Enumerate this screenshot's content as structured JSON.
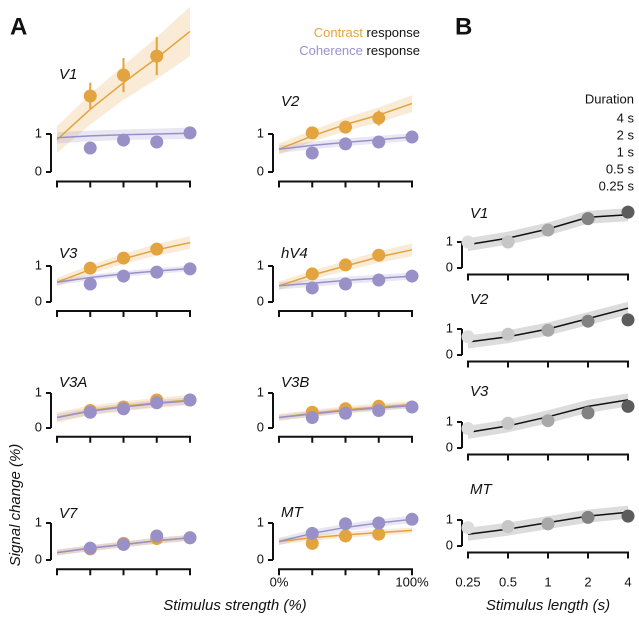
{
  "figure": {
    "panel_a": "A",
    "panel_b": "B",
    "ylabel": "Signal change (%)",
    "xlabel_a": "Stimulus strength (%)",
    "xlabel_b": "Stimulus length (s)",
    "legend_a": [
      {
        "name": "Contrast",
        "color": "#e3a33e",
        "suffix": "response"
      },
      {
        "name": "Coherence",
        "color": "#9a90c8",
        "suffix": "response"
      }
    ],
    "legend_b": {
      "title": "Duration",
      "items": [
        {
          "name": "4 s",
          "color": "#5c5c5c"
        },
        {
          "name": "2 s",
          "color": "#828282"
        },
        {
          "name": "1 s",
          "color": "#a8a8a8"
        },
        {
          "name": "0.5 s",
          "color": "#c6c6c6"
        },
        {
          "name": "0.25 s",
          "color": "#dddddd"
        }
      ]
    }
  },
  "chart_data": [
    {
      "type": "line",
      "title": "V1",
      "x": [
        0,
        25,
        50,
        75,
        100
      ],
      "xlim": [
        0,
        100
      ],
      "xticks": [
        0,
        25,
        50,
        75,
        100
      ],
      "ylim": [
        -0.25,
        3.75
      ],
      "yticks": [
        0,
        1
      ],
      "series": [
        {
          "color": "#e3a33e",
          "values": [
            null,
            2.0,
            2.55,
            3.05,
            null
          ],
          "errors": [
            null,
            0.35,
            0.45,
            0.5,
            null
          ],
          "fit": [
            0.85,
            1.65,
            2.35,
            3.0,
            3.7
          ],
          "fit_error": [
            0.35,
            0.4,
            0.45,
            0.55,
            0.65
          ]
        },
        {
          "color": "#9a90c8",
          "values": [
            null,
            0.63,
            0.84,
            0.79,
            1.03
          ],
          "errors": [
            null,
            0.08,
            0.1,
            0.15,
            0.08
          ],
          "fit": [
            0.9,
            0.95,
            0.98,
            1.0,
            1.02
          ],
          "fit_error": [
            0.15,
            0.14,
            0.14,
            0.14,
            0.15
          ]
        }
      ]
    },
    {
      "type": "line",
      "title": "V2",
      "x": [
        0,
        25,
        50,
        75,
        100
      ],
      "xlim": [
        0,
        100
      ],
      "xticks": [
        0,
        25,
        50,
        75,
        100
      ],
      "ylim": [
        -0.25,
        3.75
      ],
      "yticks": [
        0,
        1
      ],
      "series": [
        {
          "color": "#e3a33e",
          "values": [
            null,
            1.03,
            1.18,
            1.42,
            null
          ],
          "errors": [
            null,
            0.08,
            0.1,
            0.2,
            null
          ],
          "fit": [
            0.6,
            0.95,
            1.25,
            1.5,
            1.8
          ],
          "fit_error": [
            0.15,
            0.15,
            0.17,
            0.2,
            0.22
          ]
        },
        {
          "color": "#9a90c8",
          "values": [
            null,
            0.5,
            0.74,
            0.79,
            0.92
          ],
          "errors": [
            null,
            0.08,
            0.08,
            0.08,
            0.08
          ],
          "fit": [
            0.6,
            0.7,
            0.78,
            0.85,
            0.92
          ],
          "fit_error": [
            0.1,
            0.1,
            0.1,
            0.1,
            0.1
          ]
        }
      ]
    },
    {
      "type": "line",
      "title": "V3",
      "x": [
        0,
        25,
        50,
        75,
        100
      ],
      "xlim": [
        0,
        100
      ],
      "xticks": [
        0,
        25,
        50,
        75,
        100
      ],
      "ylim": [
        -0.25,
        2
      ],
      "yticks": [
        0,
        1
      ],
      "series": [
        {
          "color": "#e3a33e",
          "values": [
            null,
            0.94,
            1.22,
            1.47,
            null
          ],
          "errors": [
            null,
            0.08,
            0.1,
            0.15,
            null
          ],
          "fit": [
            0.55,
            0.9,
            1.2,
            1.45,
            1.65
          ],
          "fit_error": [
            0.12,
            0.12,
            0.14,
            0.16,
            0.18
          ]
        },
        {
          "color": "#9a90c8",
          "values": [
            null,
            0.5,
            0.72,
            0.83,
            0.92
          ],
          "errors": [
            null,
            0.06,
            0.06,
            0.06,
            0.06
          ],
          "fit": [
            0.55,
            0.68,
            0.78,
            0.86,
            0.93
          ],
          "fit_error": [
            0.08,
            0.08,
            0.08,
            0.08,
            0.08
          ]
        }
      ]
    },
    {
      "type": "line",
      "title": "hV4",
      "x": [
        0,
        25,
        50,
        75,
        100
      ],
      "xlim": [
        0,
        100
      ],
      "xticks": [
        0,
        25,
        50,
        75,
        100
      ],
      "ylim": [
        -0.25,
        2
      ],
      "yticks": [
        0,
        1
      ],
      "series": [
        {
          "color": "#e3a33e",
          "values": [
            null,
            0.78,
            1.03,
            1.3,
            null
          ],
          "errors": [
            null,
            0.08,
            0.1,
            0.12,
            null
          ],
          "fit": [
            0.45,
            0.75,
            1.0,
            1.25,
            1.45
          ],
          "fit_error": [
            0.12,
            0.12,
            0.14,
            0.16,
            0.18
          ]
        },
        {
          "color": "#9a90c8",
          "values": [
            null,
            0.39,
            0.5,
            0.61,
            0.72
          ],
          "errors": [
            null,
            0.1,
            0.08,
            0.15,
            0.08
          ],
          "fit": [
            0.45,
            0.52,
            0.6,
            0.66,
            0.72
          ],
          "fit_error": [
            0.1,
            0.1,
            0.1,
            0.1,
            0.1
          ]
        }
      ]
    },
    {
      "type": "line",
      "title": "V3A",
      "x": [
        0,
        25,
        50,
        75,
        100
      ],
      "xlim": [
        0,
        100
      ],
      "xticks": [
        0,
        25,
        50,
        75,
        100
      ],
      "ylim": [
        -0.25,
        2
      ],
      "yticks": [
        0,
        1
      ],
      "series": [
        {
          "color": "#e3a33e",
          "values": [
            null,
            0.5,
            0.6,
            0.8,
            0.8
          ],
          "errors": [
            null,
            0.06,
            0.06,
            0.08,
            0.06
          ],
          "fit": [
            0.3,
            0.5,
            0.62,
            0.72,
            0.8
          ],
          "fit_error": [
            0.15,
            0.14,
            0.14,
            0.14,
            0.15
          ]
        },
        {
          "color": "#9a90c8",
          "values": [
            null,
            0.45,
            0.55,
            0.72,
            0.8
          ],
          "errors": [
            null,
            0.06,
            0.06,
            0.12,
            0.06
          ],
          "fit": [
            0.3,
            0.48,
            0.6,
            0.7,
            0.78
          ],
          "fit_error": [
            0.1,
            0.1,
            0.1,
            0.1,
            0.1
          ]
        }
      ]
    },
    {
      "type": "line",
      "title": "V3B",
      "x": [
        0,
        25,
        50,
        75,
        100
      ],
      "xlim": [
        0,
        100
      ],
      "xticks": [
        0,
        25,
        50,
        75,
        100
      ],
      "ylim": [
        -0.25,
        2
      ],
      "yticks": [
        0,
        1
      ],
      "series": [
        {
          "color": "#e3a33e",
          "values": [
            null,
            0.45,
            0.55,
            0.62,
            null
          ],
          "errors": [
            null,
            0.06,
            0.06,
            0.1,
            null
          ],
          "fit": [
            0.3,
            0.42,
            0.52,
            0.6,
            0.67
          ],
          "fit_error": [
            0.1,
            0.1,
            0.1,
            0.1,
            0.1
          ]
        },
        {
          "color": "#9a90c8",
          "values": [
            null,
            0.3,
            0.42,
            0.5,
            0.6
          ],
          "errors": [
            null,
            0.06,
            0.06,
            0.06,
            0.06
          ],
          "fit": [
            0.3,
            0.4,
            0.5,
            0.57,
            0.64
          ],
          "fit_error": [
            0.08,
            0.08,
            0.08,
            0.08,
            0.08
          ]
        }
      ]
    },
    {
      "type": "line",
      "title": "V7",
      "x": [
        0,
        25,
        50,
        75,
        100
      ],
      "xlim": [
        0,
        100
      ],
      "xticks": [
        0,
        25,
        50,
        75,
        100
      ],
      "ylim": [
        -0.25,
        2
      ],
      "yticks": [
        0,
        1
      ],
      "series": [
        {
          "color": "#e3a33e",
          "values": [
            null,
            0.3,
            0.45,
            0.58,
            0.6
          ],
          "errors": [
            null,
            0.05,
            0.06,
            0.1,
            0.06
          ],
          "fit": [
            0.2,
            0.32,
            0.42,
            0.52,
            0.6
          ],
          "fit_error": [
            0.08,
            0.08,
            0.08,
            0.08,
            0.08
          ]
        },
        {
          "color": "#9a90c8",
          "values": [
            null,
            0.32,
            0.42,
            0.65,
            0.6
          ],
          "errors": [
            null,
            0.05,
            0.06,
            0.12,
            0.06
          ],
          "fit": [
            0.2,
            0.32,
            0.42,
            0.52,
            0.6
          ],
          "fit_error": [
            0.08,
            0.08,
            0.08,
            0.08,
            0.08
          ]
        }
      ]
    },
    {
      "type": "line",
      "title": "MT",
      "x": [
        0,
        25,
        50,
        75,
        100
      ],
      "xlim": [
        0,
        100
      ],
      "xticks": [
        {
          "value": 0,
          "label": "0%"
        },
        25,
        50,
        75,
        {
          "value": 100,
          "label": "100%"
        }
      ],
      "ylim": [
        -0.25,
        2
      ],
      "yticks": [
        0,
        1
      ],
      "series": [
        {
          "color": "#e3a33e",
          "values": [
            null,
            0.45,
            0.65,
            0.7,
            null
          ],
          "errors": [
            null,
            0.06,
            0.06,
            0.08,
            null
          ],
          "fit": [
            0.5,
            0.6,
            0.68,
            0.74,
            0.8
          ],
          "fit_error": [
            0.08,
            0.08,
            0.08,
            0.08,
            0.08
          ]
        },
        {
          "color": "#9a90c8",
          "values": [
            null,
            0.72,
            0.98,
            1.0,
            1.1
          ],
          "errors": [
            null,
            0.08,
            0.1,
            0.08,
            0.08
          ],
          "fit": [
            0.5,
            0.72,
            0.88,
            1.0,
            1.1
          ],
          "fit_error": [
            0.1,
            0.1,
            0.1,
            0.1,
            0.1
          ]
        }
      ]
    },
    {
      "type": "line",
      "title": "V1",
      "xscale": "log",
      "x": [
        0.25,
        0.5,
        1,
        2,
        4
      ],
      "xlim": [
        0.25,
        4
      ],
      "xticks": [
        0.25,
        0.5,
        1,
        2,
        4
      ],
      "ylim": [
        -0.25,
        2.5
      ],
      "yticks": [
        0,
        1
      ],
      "series": [
        {
          "color": "#111111",
          "values": [
            1.0,
            1.0,
            1.46,
            1.9,
            2.15
          ],
          "errors": [
            0.1,
            0.08,
            0.1,
            0.18,
            0.12
          ],
          "fit": [
            0.9,
            1.15,
            1.5,
            1.95,
            2.05
          ],
          "fit_error": [
            0.25,
            0.25,
            0.25,
            0.25,
            0.25
          ]
        }
      ]
    },
    {
      "type": "line",
      "title": "V2",
      "xscale": "log",
      "x": [
        0.25,
        0.5,
        1,
        2,
        4
      ],
      "xlim": [
        0.25,
        4
      ],
      "xticks": [
        0.25,
        0.5,
        1,
        2,
        4
      ],
      "ylim": [
        -0.25,
        2.5
      ],
      "yticks": [
        0,
        1
      ],
      "series": [
        {
          "color": "#111111",
          "values": [
            0.7,
            0.8,
            0.95,
            1.3,
            1.35
          ],
          "errors": [
            0.12,
            0.08,
            0.08,
            0.2,
            0.15
          ],
          "fit": [
            0.5,
            0.7,
            1.0,
            1.4,
            1.8
          ],
          "fit_error": [
            0.25,
            0.25,
            0.25,
            0.25,
            0.25
          ]
        }
      ]
    },
    {
      "type": "line",
      "title": "V3",
      "xscale": "log",
      "x": [
        0.25,
        0.5,
        1,
        2,
        4
      ],
      "xlim": [
        0.25,
        4
      ],
      "xticks": [
        0.25,
        0.5,
        1,
        2,
        4
      ],
      "ylim": [
        -0.25,
        2.5
      ],
      "yticks": [
        0,
        1
      ],
      "series": [
        {
          "color": "#111111",
          "values": [
            0.75,
            0.95,
            1.05,
            1.35,
            1.6
          ],
          "errors": [
            0.1,
            0.08,
            0.08,
            0.18,
            0.1
          ],
          "fit": [
            0.6,
            0.85,
            1.2,
            1.6,
            1.85
          ],
          "fit_error": [
            0.25,
            0.25,
            0.25,
            0.25,
            0.25
          ]
        }
      ]
    },
    {
      "type": "line",
      "title": "MT",
      "xscale": "log",
      "x": [
        0.25,
        0.5,
        1,
        2,
        4
      ],
      "xlim": [
        0.25,
        4
      ],
      "xticks": [
        0.25,
        0.5,
        1,
        2,
        4
      ],
      "ylim": [
        -0.25,
        2.5
      ],
      "yticks": [
        0,
        1
      ],
      "series": [
        {
          "color": "#111111",
          "values": [
            0.7,
            0.75,
            0.85,
            1.1,
            1.15
          ],
          "errors": [
            0.15,
            0.08,
            0.08,
            0.12,
            0.08
          ],
          "fit": [
            0.45,
            0.65,
            0.9,
            1.15,
            1.3
          ],
          "fit_error": [
            0.25,
            0.25,
            0.25,
            0.25,
            0.25
          ]
        }
      ]
    }
  ]
}
